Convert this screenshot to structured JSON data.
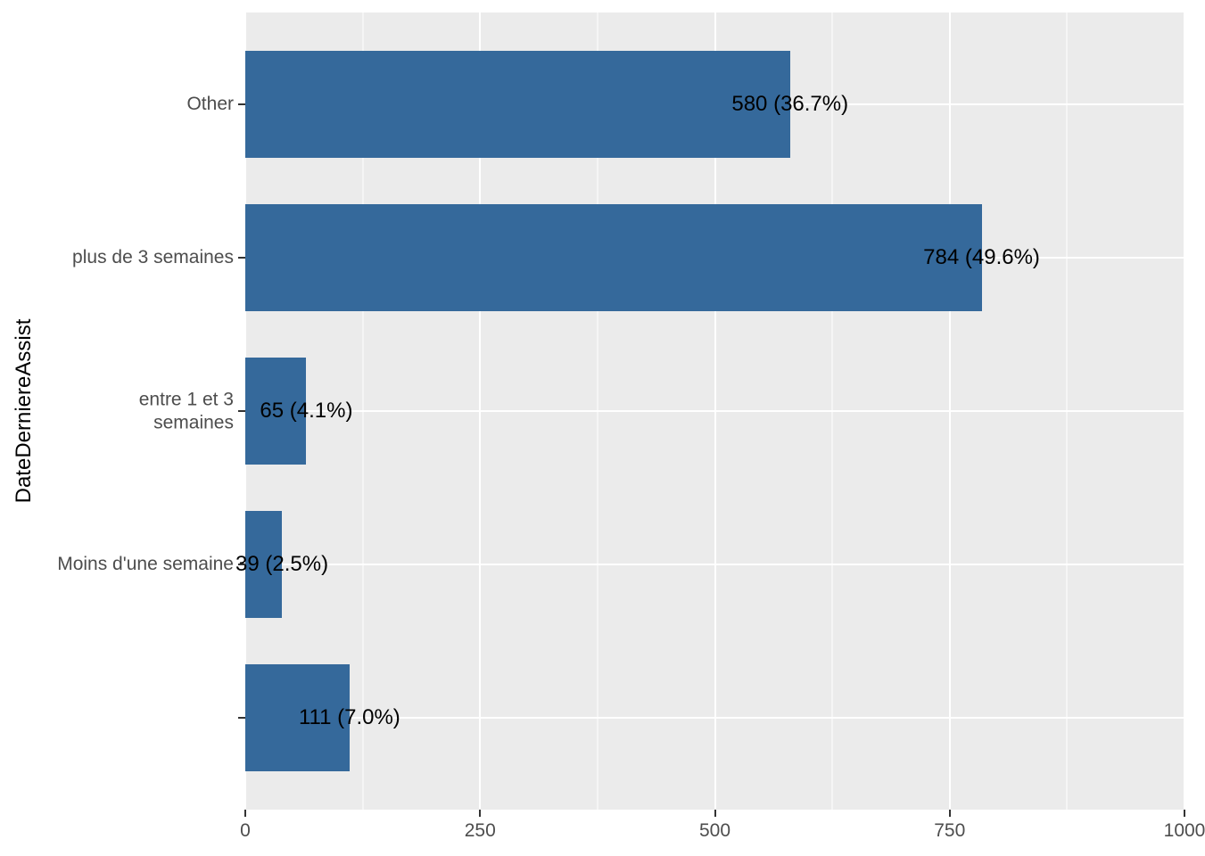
{
  "chart_data": {
    "type": "bar",
    "orientation": "horizontal",
    "title": "",
    "xlabel": "",
    "ylabel": "DateDerniereAssist",
    "categories": [
      "Other",
      "plus de 3 semaines",
      "entre 1 et 3\nsemaines",
      "Moins d'une semaine",
      ""
    ],
    "values": [
      580,
      784,
      65,
      39,
      111
    ],
    "bar_labels": [
      "580 (36.7%)",
      "784 (49.6%)",
      "65 (4.1%)",
      "39 (2.5%)",
      "111 (7.0%)"
    ],
    "percentages": [
      36.7,
      49.6,
      4.1,
      2.5,
      7.0
    ],
    "xlim": [
      0,
      1000
    ],
    "x_ticks": [
      0,
      250,
      500,
      750,
      1000
    ],
    "x_tick_labels": [
      "0",
      "250",
      "500",
      "750",
      "1000"
    ],
    "x_minor_gridlines": [
      125,
      375,
      625,
      875
    ],
    "grid": "on",
    "legend": "none",
    "colors": {
      "bar": "#35699B",
      "panel_background": "#EBEBEB",
      "gridline": "#FFFFFF",
      "tick_mark": "#333333",
      "tick_label": "#4D4D4D",
      "bar_label": "#000000",
      "axis_title": "#000000",
      "page_background": "#FFFFFF"
    }
  }
}
